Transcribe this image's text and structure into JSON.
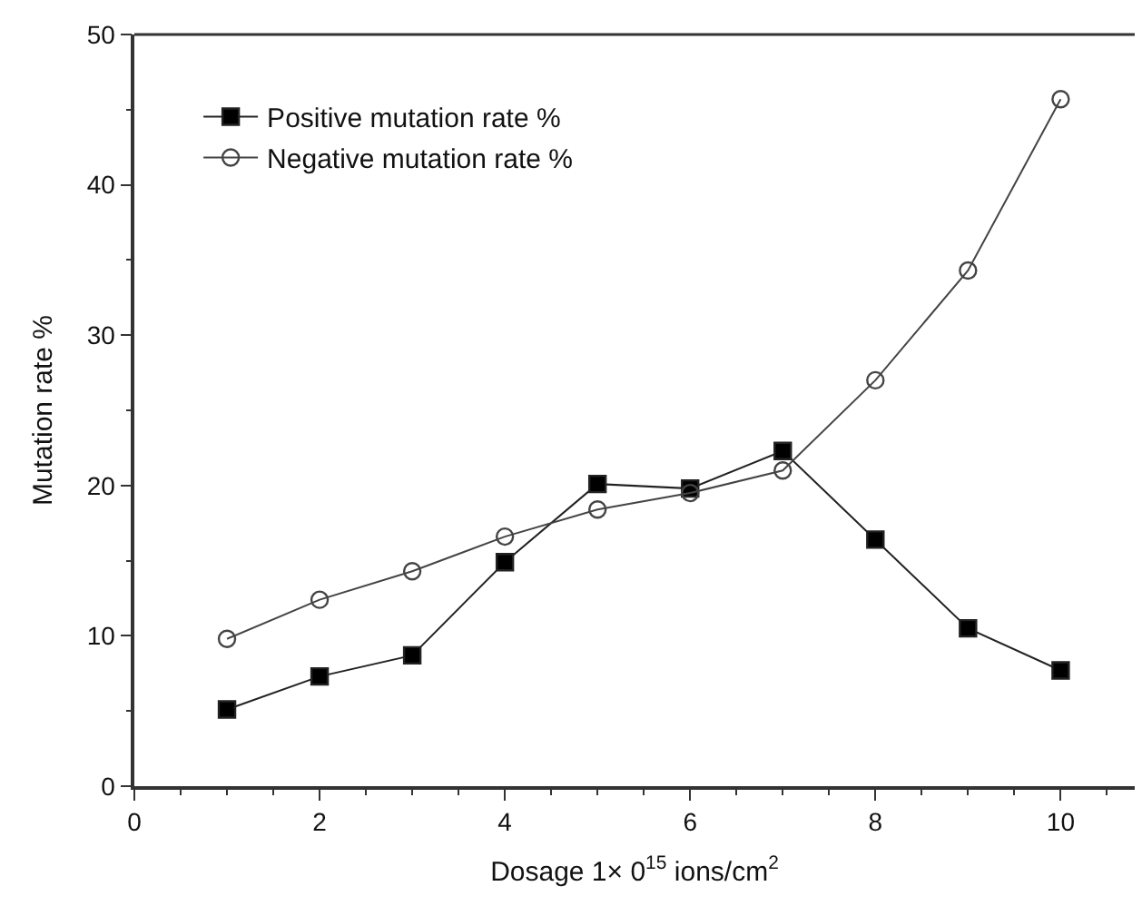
{
  "chart_data": {
    "type": "line",
    "xlabel": "Dosage 1× 0$^{15}$ ions/cm$^{2}$",
    "ylabel": "Mutation rate %",
    "x": [
      1,
      2,
      3,
      4,
      5,
      6,
      7,
      8,
      9,
      10
    ],
    "series": [
      {
        "name": "Positive mutation rate %",
        "color": "#222222",
        "marker": "square",
        "values": [
          5.1,
          7.3,
          8.7,
          14.9,
          20.1,
          19.8,
          22.3,
          16.4,
          10.5,
          7.7
        ]
      },
      {
        "name": "Negative mutation rate %",
        "color": "#444444",
        "marker": "circle",
        "values": [
          9.8,
          12.4,
          14.3,
          16.6,
          18.4,
          19.5,
          21.0,
          27.0,
          34.3,
          45.7
        ]
      }
    ],
    "xlim": [
      0,
      10.8
    ],
    "xticks": [
      0,
      2,
      4,
      6,
      8,
      10
    ],
    "ylim": [
      0,
      50
    ],
    "yticks": [
      0,
      10,
      20,
      30,
      40,
      50
    ],
    "legend": "top left",
    "line_style": "solid"
  }
}
